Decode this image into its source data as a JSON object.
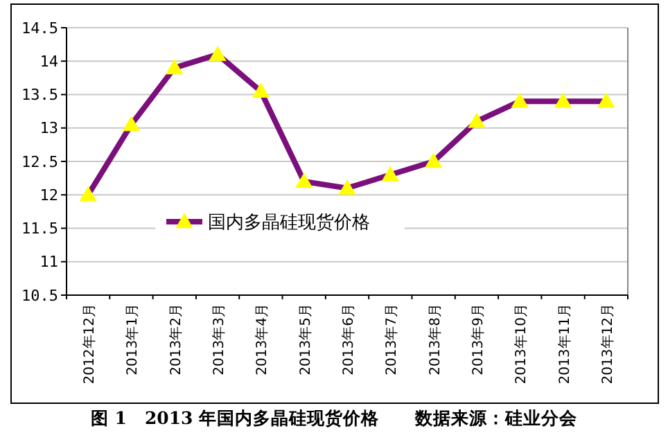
{
  "chart_data": {
    "type": "line",
    "title": "图 1　2013 年国内多晶硅现货价格　　数据来源：硅业分会",
    "categories": [
      "2012年12月",
      "2013年1月",
      "2013年2月",
      "2013年3月",
      "2013年4月",
      "2013年5月",
      "2013年6月",
      "2013年7月",
      "2013年8月",
      "2013年9月",
      "2013年10月",
      "2013年11月",
      "2013年12月"
    ],
    "series": [
      {
        "name": "国内多晶硅现货价格",
        "color": "#7b0f7b",
        "values": [
          12.0,
          13.05,
          13.9,
          14.1,
          13.55,
          12.2,
          12.1,
          12.3,
          12.5,
          13.1,
          13.4,
          13.4,
          13.4
        ]
      }
    ],
    "ylim": [
      10.5,
      14.5
    ],
    "yticks": [
      10.5,
      11,
      11.5,
      12,
      12.5,
      13,
      13.5,
      14,
      14.5
    ],
    "grid": "y",
    "legend": "center",
    "marker": "triangle",
    "line_style": "solid"
  }
}
